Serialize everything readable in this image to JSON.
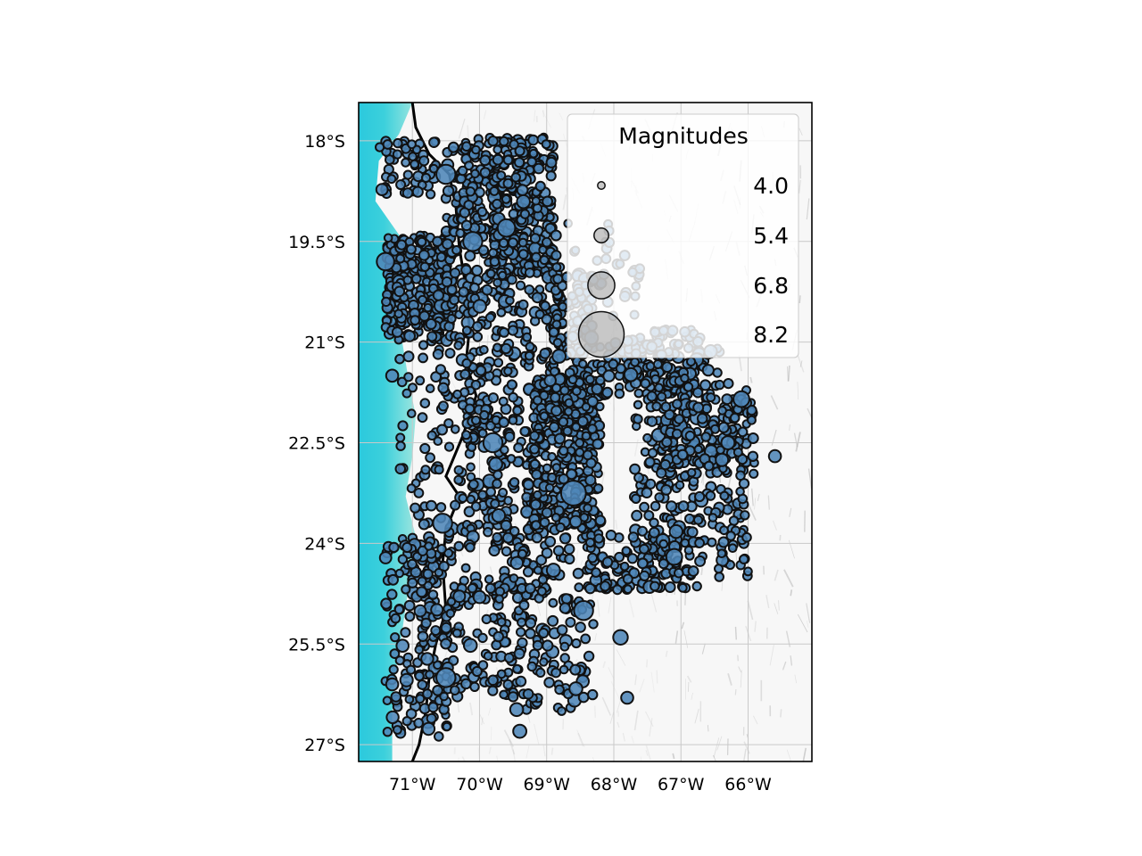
{
  "chart_data": {
    "type": "scatter",
    "map_type": "seismicity map",
    "extent": {
      "lon": [
        -71.8,
        -65.05
      ],
      "lat": [
        -27.25,
        -17.43
      ]
    },
    "x_ticks": [
      {
        "value": -71,
        "label": "71°W"
      },
      {
        "value": -70,
        "label": "70°W"
      },
      {
        "value": -69,
        "label": "69°W"
      },
      {
        "value": -68,
        "label": "68°W"
      },
      {
        "value": -67,
        "label": "67°W"
      },
      {
        "value": -66,
        "label": "66°W"
      }
    ],
    "y_ticks": [
      {
        "value": -18,
        "label": "18°S"
      },
      {
        "value": -19.5,
        "label": "19.5°S"
      },
      {
        "value": -21,
        "label": "21°S"
      },
      {
        "value": -22.5,
        "label": "22.5°S"
      },
      {
        "value": -24,
        "label": "24°S"
      },
      {
        "value": -25.5,
        "label": "25.5°S"
      },
      {
        "value": -27,
        "label": "27°S"
      }
    ],
    "grid": true,
    "legend": {
      "title": "Magnitudes",
      "placement": "top-right",
      "entries": [
        {
          "label": "4.0",
          "magnitude": 4.0
        },
        {
          "label": "5.4",
          "magnitude": 5.4
        },
        {
          "label": "6.8",
          "magnitude": 6.8
        },
        {
          "label": "8.2",
          "magnitude": 8.2
        }
      ]
    },
    "marker_color": "#4f86b8",
    "marker_edge_color": "#111111",
    "ocean_color": "#2bc9dd",
    "land_color": "#f7f7f7",
    "coastline_color": "#000000",
    "notable_events": [
      {
        "lon": -70.1,
        "lat": -19.5,
        "magnitude": 6.0
      },
      {
        "lon": -70.5,
        "lat": -18.5,
        "magnitude": 6.0
      },
      {
        "lon": -71.4,
        "lat": -19.8,
        "magnitude": 5.8
      },
      {
        "lon": -68.6,
        "lat": -23.25,
        "magnitude": 6.6
      },
      {
        "lon": -68.45,
        "lat": -25.0,
        "magnitude": 6.0
      },
      {
        "lon": -69.8,
        "lat": -22.5,
        "magnitude": 6.0
      },
      {
        "lon": -70.55,
        "lat": -23.7,
        "magnitude": 6.0
      },
      {
        "lon": -70.5,
        "lat": -26.0,
        "magnitude": 6.0
      },
      {
        "lon": -69.6,
        "lat": -19.3,
        "magnitude": 5.8
      },
      {
        "lon": -67.9,
        "lat": -25.4,
        "magnitude": 5.4
      },
      {
        "lon": -69.4,
        "lat": -26.8,
        "magnitude": 5.2
      },
      {
        "lon": -66.3,
        "lat": -22.5,
        "magnitude": 5.2
      },
      {
        "lon": -65.6,
        "lat": -22.7,
        "magnitude": 5.0
      },
      {
        "lon": -67.8,
        "lat": -26.3,
        "magnitude": 5.0
      },
      {
        "lon": -71.3,
        "lat": -26.1,
        "magnitude": 5.0
      },
      {
        "lon": -71.3,
        "lat": -21.5,
        "magnitude": 5.0
      },
      {
        "lon": -70.0,
        "lat": -24.8,
        "magnitude": 5.0
      },
      {
        "lon": -66.1,
        "lat": -21.85,
        "magnitude": 5.6
      },
      {
        "lon": -67.1,
        "lat": -24.2,
        "magnitude": 5.6
      },
      {
        "lon": -68.9,
        "lat": -24.4,
        "magnitude": 5.2
      }
    ],
    "clusters": [
      {
        "lon": [
          -71.5,
          -70.6
        ],
        "lat": [
          -18.0,
          -18.8
        ],
        "count": 55
      },
      {
        "lon": [
          -71.4,
          -70.4
        ],
        "lat": [
          -19.4,
          -21.0
        ],
        "count": 320
      },
      {
        "lon": [
          -70.5,
          -70.1
        ],
        "lat": [
          -17.95,
          -21.0
        ],
        "count": 70
      },
      {
        "lon": [
          -70.3,
          -69.7
        ],
        "lat": [
          -17.95,
          -19.4
        ],
        "count": 90
      },
      {
        "lon": [
          -69.8,
          -68.9
        ],
        "lat": [
          -17.95,
          -20.0
        ],
        "count": 260
      },
      {
        "lon": [
          -70.2,
          -68.8
        ],
        "lat": [
          -19.4,
          -22.4
        ],
        "count": 240
      },
      {
        "lon": [
          -68.9,
          -68.3
        ],
        "lat": [
          -20.0,
          -22.5
        ],
        "count": 150
      },
      {
        "lon": [
          -71.2,
          -70.1
        ],
        "lat": [
          -21.0,
          -24.5
        ],
        "count": 110
      },
      {
        "lon": [
          -71.4,
          -70.4
        ],
        "lat": [
          -24.0,
          -26.9
        ],
        "count": 140
      },
      {
        "lon": [
          -70.2,
          -69.0
        ],
        "lat": [
          -22.0,
          -24.8
        ],
        "count": 170
      },
      {
        "lon": [
          -69.8,
          -68.3
        ],
        "lat": [
          -23.5,
          -26.5
        ],
        "count": 160
      },
      {
        "lon": [
          -69.2,
          -68.2
        ],
        "lat": [
          -21.5,
          -23.8
        ],
        "count": 300
      },
      {
        "lon": [
          -68.3,
          -66.4
        ],
        "lat": [
          -21.0,
          -21.8
        ],
        "count": 120
      },
      {
        "lon": [
          -67.7,
          -66.0
        ],
        "lat": [
          -21.6,
          -24.5
        ],
        "count": 260
      },
      {
        "lon": [
          -67.3,
          -65.9
        ],
        "lat": [
          -21.8,
          -23.0
        ],
        "count": 110
      },
      {
        "lon": [
          -68.4,
          -66.7
        ],
        "lat": [
          -23.8,
          -24.7
        ],
        "count": 120
      },
      {
        "lon": [
          -70.9,
          -69.2
        ],
        "lat": [
          -24.5,
          -26.3
        ],
        "count": 130
      },
      {
        "lon": [
          -67.8,
          -66.7
        ],
        "lat": [
          -20.8,
          -21.7
        ],
        "count": 60
      },
      {
        "lon": [
          -68.7,
          -67.6
        ],
        "lat": [
          -19.2,
          -21.0
        ],
        "count": 40
      }
    ]
  }
}
